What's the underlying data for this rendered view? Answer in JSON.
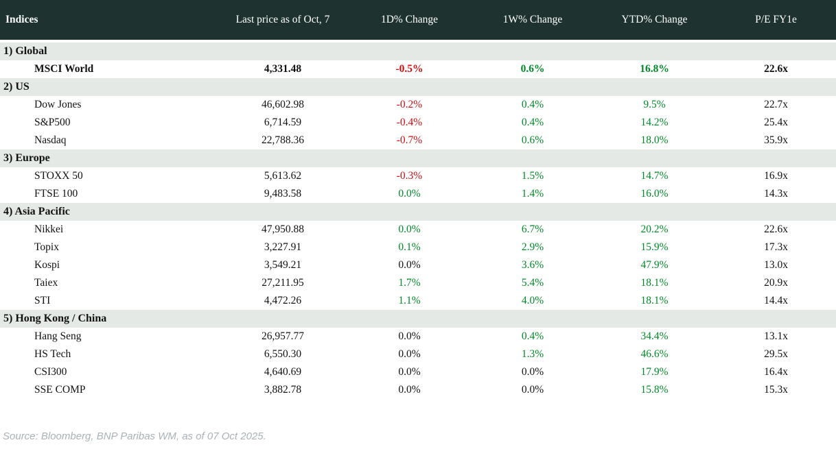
{
  "colors": {
    "header_bg": "#1e332f",
    "header_text": "#ffffff",
    "section_band_bg": "#e4e9e5",
    "positive": "#008a28",
    "negative": "#cc0d12",
    "neutral": "#111111",
    "source_text": "#a8b2b6"
  },
  "chart_data": {
    "type": "table",
    "title": "Indices",
    "columns": [
      "Indices",
      "Last price as of Oct, 7",
      "1D% Change",
      "1W% Change",
      "YTD% Change",
      "P/E FY1e"
    ],
    "sections": [
      {
        "label": "1) Global",
        "rows": [
          {
            "name": "MSCI World",
            "bold": true,
            "price": "4,331.48",
            "d1": "-0.5%",
            "d1_c": "neg",
            "w1": "0.6%",
            "w1_c": "pos",
            "ytd": "16.8%",
            "ytd_c": "pos",
            "pe": "22.6x"
          }
        ]
      },
      {
        "label": "2) US",
        "rows": [
          {
            "name": "Dow Jones",
            "price": "46,602.98",
            "d1": "-0.2%",
            "d1_c": "neg",
            "w1": "0.4%",
            "w1_c": "pos",
            "ytd": "9.5%",
            "ytd_c": "pos",
            "pe": "22.7x"
          },
          {
            "name": "S&P500",
            "price": "6,714.59",
            "d1": "-0.4%",
            "d1_c": "neg",
            "w1": "0.4%",
            "w1_c": "pos",
            "ytd": "14.2%",
            "ytd_c": "pos",
            "pe": "25.4x"
          },
          {
            "name": "Nasdaq",
            "price": "22,788.36",
            "d1": "-0.7%",
            "d1_c": "neg",
            "w1": "0.6%",
            "w1_c": "pos",
            "ytd": "18.0%",
            "ytd_c": "pos",
            "pe": "35.9x"
          }
        ]
      },
      {
        "label": "3) Europe",
        "rows": [
          {
            "name": "STOXX 50",
            "price": "5,613.62",
            "d1": "-0.3%",
            "d1_c": "neg",
            "w1": "1.5%",
            "w1_c": "pos",
            "ytd": "14.7%",
            "ytd_c": "pos",
            "pe": "16.9x"
          },
          {
            "name": "FTSE 100",
            "price": "9,483.58",
            "d1": "0.0%",
            "d1_c": "pos",
            "w1": "1.4%",
            "w1_c": "pos",
            "ytd": "16.0%",
            "ytd_c": "pos",
            "pe": "14.3x"
          }
        ]
      },
      {
        "label": "4) Asia Pacific",
        "rows": [
          {
            "name": "Nikkei",
            "price": "47,950.88",
            "d1": "0.0%",
            "d1_c": "pos",
            "w1": "6.7%",
            "w1_c": "pos",
            "ytd": "20.2%",
            "ytd_c": "pos",
            "pe": "22.6x"
          },
          {
            "name": "Topix",
            "price": "3,227.91",
            "d1": "0.1%",
            "d1_c": "pos",
            "w1": "2.9%",
            "w1_c": "pos",
            "ytd": "15.9%",
            "ytd_c": "pos",
            "pe": "17.3x"
          },
          {
            "name": "Kospi",
            "price": "3,549.21",
            "d1": "0.0%",
            "d1_c": "neutral",
            "w1": "3.6%",
            "w1_c": "pos",
            "ytd": "47.9%",
            "ytd_c": "pos",
            "pe": "13.0x"
          },
          {
            "name": "Taiex",
            "price": "27,211.95",
            "d1": "1.7%",
            "d1_c": "pos",
            "w1": "5.4%",
            "w1_c": "pos",
            "ytd": "18.1%",
            "ytd_c": "pos",
            "pe": "20.9x"
          },
          {
            "name": "STI",
            "price": "4,472.26",
            "d1": "1.1%",
            "d1_c": "pos",
            "w1": "4.0%",
            "w1_c": "pos",
            "ytd": "18.1%",
            "ytd_c": "pos",
            "pe": "14.4x"
          }
        ]
      },
      {
        "label": "5) Hong Kong / China",
        "rows": [
          {
            "name": "Hang Seng",
            "price": "26,957.77",
            "d1": "0.0%",
            "d1_c": "neutral",
            "w1": "0.4%",
            "w1_c": "pos",
            "ytd": "34.4%",
            "ytd_c": "pos",
            "pe": "13.1x"
          },
          {
            "name": "HS Tech",
            "price": "6,550.30",
            "d1": "0.0%",
            "d1_c": "neutral",
            "w1": "1.3%",
            "w1_c": "pos",
            "ytd": "46.6%",
            "ytd_c": "pos",
            "pe": "29.5x"
          },
          {
            "name": "CSI300",
            "price": "4,640.69",
            "d1": "0.0%",
            "d1_c": "neutral",
            "w1": "0.0%",
            "w1_c": "neutral",
            "ytd": "17.9%",
            "ytd_c": "pos",
            "pe": "16.4x"
          },
          {
            "name": "SSE COMP",
            "price": "3,882.78",
            "d1": "0.0%",
            "d1_c": "neutral",
            "w1": "0.0%",
            "w1_c": "neutral",
            "ytd": "15.8%",
            "ytd_c": "pos",
            "pe": "15.3x"
          }
        ]
      }
    ]
  },
  "footer": {
    "source": "Source: Bloomberg, BNP Paribas WM, as of 07 Oct 2025."
  }
}
